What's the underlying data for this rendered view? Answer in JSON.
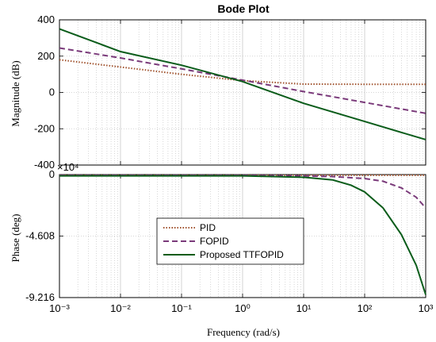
{
  "chart_data": [
    {
      "type": "line",
      "title": "Bode Plot",
      "ylabel": "Magnitude (dB)",
      "xscale": "log",
      "xlim": [
        0.001,
        1000
      ],
      "ylim": [
        -400,
        400
      ],
      "yticks": [
        "400",
        "200",
        "0",
        "-200",
        "-400"
      ],
      "grid": true,
      "series": [
        {
          "name": "PID",
          "color": "#a0522d",
          "dash": "dotted",
          "x": [
            0.001,
            0.01,
            0.1,
            1,
            10,
            100,
            1000
          ],
          "y": [
            180,
            140,
            100,
            65,
            46,
            45,
            45
          ]
        },
        {
          "name": "FOPID",
          "color": "#7a3a7a",
          "dash": "dashed",
          "x": [
            0.001,
            0.01,
            0.1,
            1,
            10,
            100,
            1000
          ],
          "y": [
            245,
            190,
            130,
            68,
            5,
            -55,
            -115
          ]
        },
        {
          "name": "Proposed TTFOPID",
          "color": "#0a5c1a",
          "dash": "solid",
          "x": [
            0.001,
            0.01,
            0.1,
            1,
            10,
            100,
            1000
          ],
          "y": [
            350,
            225,
            150,
            60,
            -60,
            -160,
            -260
          ]
        }
      ]
    },
    {
      "type": "line",
      "xlabel": "Frequency (rad/s)",
      "ylabel": "Phase (deg)",
      "xscale": "log",
      "xlim": [
        0.001,
        1000
      ],
      "ylim": [
        -9.216,
        0
      ],
      "y_multiplier": "×10⁴",
      "yticks": [
        "0",
        "-4.608",
        "-9.216"
      ],
      "xticks": [
        "10⁻³",
        "10⁻²",
        "10⁻¹",
        "10⁰",
        "10¹",
        "10²",
        "10³"
      ],
      "grid": true,
      "legend": "center-left",
      "series": [
        {
          "name": "PID",
          "color": "#a0522d",
          "dash": "dotted",
          "x": [
            0.001,
            1000
          ],
          "y": [
            -0.05,
            -0.05
          ]
        },
        {
          "name": "FOPID",
          "color": "#7a3a7a",
          "dash": "dashed",
          "x": [
            0.001,
            1,
            10,
            30,
            100,
            200,
            400,
            700,
            1000
          ],
          "y": [
            -0.05,
            -0.05,
            -0.1,
            -0.15,
            -0.3,
            -0.5,
            -1.0,
            -1.7,
            -2.5
          ]
        },
        {
          "name": "Proposed TTFOPID",
          "color": "#0a5c1a",
          "dash": "solid",
          "x": [
            0.001,
            1,
            10,
            30,
            60,
            100,
            200,
            400,
            700,
            1000
          ],
          "y": [
            -0.1,
            -0.1,
            -0.2,
            -0.4,
            -0.8,
            -1.3,
            -2.5,
            -4.5,
            -6.8,
            -9.0
          ]
        }
      ]
    }
  ]
}
